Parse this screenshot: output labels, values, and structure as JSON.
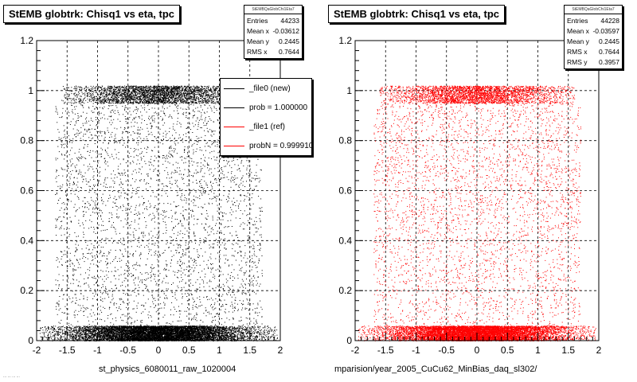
{
  "panels": [
    {
      "title": "StEMB globtrk: Chisq1 vs eta, tpc",
      "stats": {
        "header": "StEMBQaGlobChi1Eta7",
        "rows": [
          {
            "label": "Entries",
            "value": "44233"
          },
          {
            "label": "Mean x",
            "value": "-0.03612"
          },
          {
            "label": "Mean y",
            "value": "0.2445"
          },
          {
            "label": "RMS x",
            "value": "0.7644"
          }
        ]
      },
      "legend": [
        {
          "label": "_file0 (new)",
          "color": "#000000"
        },
        {
          "label": "prob = 1.000000",
          "color": "#000000"
        },
        {
          "label": "_file1 (ref)",
          "color": "#ff0000"
        },
        {
          "label": "probN = 0.999910",
          "color": "#ff0000"
        }
      ],
      "footer": "st_physics_6080011_raw_1020004",
      "footer_note": "... ... ... ..."
    },
    {
      "title": "StEMB globtrk: Chisq1 vs eta, tpc",
      "stats": {
        "header": "StEMBQaGlobChi1Eta7",
        "rows": [
          {
            "label": "Entries",
            "value": "44228"
          },
          {
            "label": "Mean x",
            "value": "-0.03597"
          },
          {
            "label": "Mean y",
            "value": "0.2445"
          },
          {
            "label": "RMS x",
            "value": "0.7644"
          },
          {
            "label": "RMS y",
            "value": "0.3957"
          }
        ]
      },
      "footer": "mparision/year_2005_CuCu62_MinBias_daq_sl302/"
    }
  ],
  "chart_data": [
    {
      "type": "scatter",
      "title": "StEMB globtrk: Chisq1 vs eta, tpc",
      "xlim": [
        -2,
        2
      ],
      "ylim": [
        0,
        1.2
      ],
      "x_ticks": [
        "-2",
        "-1.5",
        "-1",
        "-0.5",
        "0",
        "0.5",
        "1",
        "1.5",
        "2"
      ],
      "y_ticks": [
        "0",
        "0.2",
        "0.4",
        "0.6",
        "0.8",
        "1",
        "1.2"
      ],
      "grid": true,
      "color": "#000000",
      "bands": [
        {
          "y_range": [
            0,
            0.06
          ],
          "x_range": [
            -1.95,
            1.95
          ],
          "density": "very high"
        },
        {
          "y_range": [
            0.95,
            1.02
          ],
          "x_range": [
            -1.6,
            1.6
          ],
          "density": "high"
        },
        {
          "y_range": [
            0.06,
            0.95
          ],
          "x_range": [
            -1.7,
            1.7
          ],
          "density": "sparse"
        }
      ]
    },
    {
      "type": "scatter",
      "title": "StEMB globtrk: Chisq1 vs eta, tpc",
      "xlim": [
        -2,
        2
      ],
      "ylim": [
        0,
        1.2
      ],
      "x_ticks": [
        "-2",
        "-1.5",
        "-1",
        "-0.5",
        "0",
        "0.5",
        "1",
        "1.5",
        "2"
      ],
      "y_ticks": [
        "0",
        "0.2",
        "0.4",
        "0.6",
        "0.8",
        "1",
        "1.2"
      ],
      "grid": true,
      "color": "#ff0000",
      "bands": [
        {
          "y_range": [
            0,
            0.06
          ],
          "x_range": [
            -1.95,
            1.95
          ],
          "density": "very high"
        },
        {
          "y_range": [
            0.95,
            1.02
          ],
          "x_range": [
            -1.6,
            1.6
          ],
          "density": "high"
        },
        {
          "y_range": [
            0.06,
            0.95
          ],
          "x_range": [
            -1.7,
            1.7
          ],
          "density": "sparse"
        }
      ]
    }
  ]
}
